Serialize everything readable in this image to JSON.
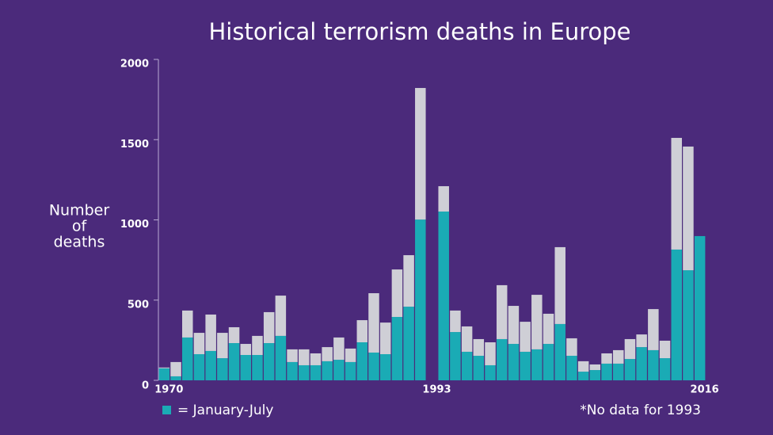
{
  "chart_data": {
    "type": "stacked_bar",
    "title": "Historical terrorism deaths in Europe",
    "y_label": [
      "Number",
      "of",
      "deaths"
    ],
    "note": "*No data for 1993",
    "categories": [
      "1970",
      null,
      null,
      null,
      null,
      null,
      null,
      null,
      null,
      null,
      null,
      null,
      null,
      null,
      null,
      null,
      null,
      null,
      null,
      null,
      null,
      null,
      null,
      "1993",
      null,
      null,
      null,
      null,
      null,
      null,
      null,
      null,
      null,
      null,
      null,
      null,
      null,
      null,
      null,
      null,
      null,
      null,
      null,
      null,
      null,
      null,
      "2016"
    ],
    "series": [
      {
        "name": "= January-July",
        "color": "#1aabb5",
        "values": [
          75,
          25,
          267,
          163,
          183,
          138,
          232,
          158,
          158,
          232,
          277,
          114,
          94,
          94,
          119,
          128,
          114,
          237,
          173,
          163,
          395,
          459,
          1002,
          null,
          1052,
          301,
          178,
          153,
          94,
          257,
          227,
          178,
          193,
          227,
          351,
          153,
          54,
          64,
          104,
          104,
          133,
          207,
          188,
          138,
          815,
          686,
          899
        ]
      },
      {
        "color": "#cfcfd6",
        "values": [
          5,
          89,
          168,
          133,
          227,
          158,
          99,
          69,
          119,
          193,
          251,
          79,
          99,
          74,
          88,
          139,
          84,
          138,
          370,
          197,
          296,
          321,
          820,
          null,
          158,
          134,
          158,
          104,
          143,
          336,
          237,
          187,
          340,
          188,
          479,
          109,
          65,
          35,
          64,
          84,
          124,
          79,
          256,
          109,
          696,
          771,
          0
        ]
      }
    ],
    "ylim": [
      0,
      2000
    ],
    "yticks": [
      0,
      500,
      1000,
      1500,
      2000
    ]
  }
}
